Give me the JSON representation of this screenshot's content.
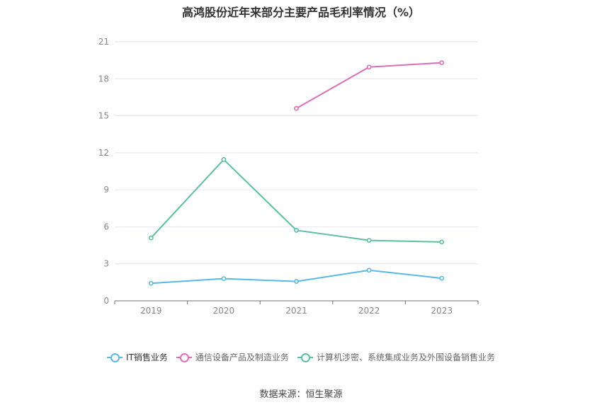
{
  "chart_data": {
    "type": "line",
    "title": "高鸿股份近年来部分主要产品毛利率情况（%）",
    "x": [
      "2019",
      "2020",
      "2021",
      "2022",
      "2023"
    ],
    "ylim": [
      0,
      21
    ],
    "yticks": [
      "0",
      "3",
      "6",
      "9",
      "12",
      "15",
      "18",
      "21"
    ],
    "grid": true,
    "legend_position": "bottom",
    "series": [
      {
        "name": "IT销售业务",
        "color": "#5ab8e6",
        "values": [
          1.42,
          1.8,
          1.57,
          2.48,
          1.83
        ]
      },
      {
        "name": "通信设备产品及制造业务",
        "color": "#d96fb5",
        "values": [
          null,
          null,
          15.6,
          18.95,
          19.3
        ]
      },
      {
        "name": "计算机涉密、系统集成业务及外围设备销售业务",
        "color": "#5bbfa0",
        "values": [
          5.1,
          11.45,
          5.72,
          4.9,
          4.77
        ]
      }
    ],
    "source": "数据来源：恒生聚源"
  }
}
